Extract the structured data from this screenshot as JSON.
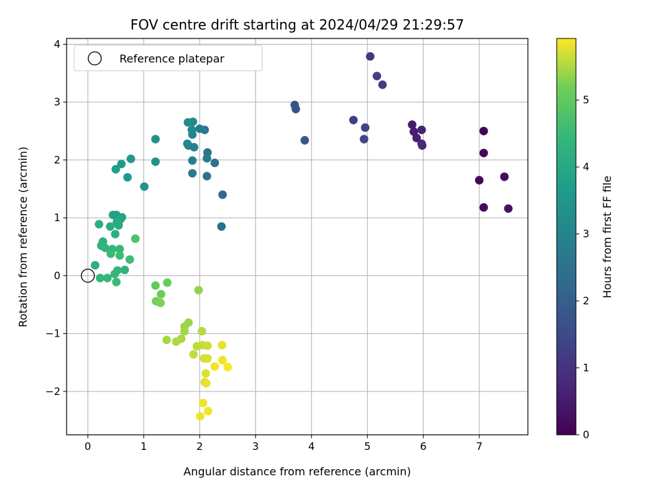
{
  "chart_data": {
    "type": "scatter",
    "title": "FOV centre drift starting at 2024/04/29 21:29:57",
    "xlabel": "Angular distance from reference (arcmin)",
    "ylabel": "Rotation from reference (arcmin)",
    "xlim": [
      -0.38,
      7.87
    ],
    "ylim": [
      -2.75,
      4.1
    ],
    "xticks": [
      0,
      1,
      2,
      3,
      4,
      5,
      6,
      7
    ],
    "yticks": [
      -2,
      -1,
      0,
      1,
      2,
      3,
      4
    ],
    "xtick_labels": [
      "0",
      "1",
      "2",
      "3",
      "4",
      "5",
      "6",
      "7"
    ],
    "ytick_labels": [
      "−2",
      "−1",
      "0",
      "1",
      "2",
      "3",
      "4"
    ],
    "grid": true,
    "legend": {
      "placement": "upper-left",
      "entries": [
        "Reference platepar"
      ]
    },
    "reference_point": {
      "x": 0,
      "y": 0
    },
    "colorbar": {
      "label": "Hours from first FF file",
      "colormap": "viridis",
      "range": [
        0,
        5.92
      ],
      "ticks": [
        0,
        1,
        2,
        3,
        4,
        5
      ],
      "tick_labels": [
        "0",
        "1",
        "2",
        "3",
        "4",
        "5"
      ]
    },
    "points": [
      {
        "x": 7.08,
        "y": 2.5,
        "h": 0.05
      },
      {
        "x": 7.08,
        "y": 2.12,
        "h": 0.1
      },
      {
        "x": 7.0,
        "y": 1.65,
        "h": 0.15
      },
      {
        "x": 7.08,
        "y": 1.18,
        "h": 0.2
      },
      {
        "x": 7.45,
        "y": 1.71,
        "h": 0.25
      },
      {
        "x": 7.52,
        "y": 1.16,
        "h": 0.3
      },
      {
        "x": 5.8,
        "y": 2.61,
        "h": 0.5
      },
      {
        "x": 5.83,
        "y": 2.49,
        "h": 0.55
      },
      {
        "x": 5.88,
        "y": 2.38,
        "h": 0.6
      },
      {
        "x": 5.97,
        "y": 2.52,
        "h": 0.65
      },
      {
        "x": 5.97,
        "y": 2.28,
        "h": 0.7
      },
      {
        "x": 5.98,
        "y": 2.25,
        "h": 0.75
      },
      {
        "x": 5.05,
        "y": 3.79,
        "h": 1.15
      },
      {
        "x": 5.17,
        "y": 3.45,
        "h": 1.2
      },
      {
        "x": 5.27,
        "y": 3.3,
        "h": 1.25
      },
      {
        "x": 4.75,
        "y": 2.69,
        "h": 1.3
      },
      {
        "x": 4.96,
        "y": 2.56,
        "h": 1.35
      },
      {
        "x": 4.94,
        "y": 2.36,
        "h": 1.4
      },
      {
        "x": 3.7,
        "y": 2.95,
        "h": 1.7
      },
      {
        "x": 3.72,
        "y": 2.88,
        "h": 1.75
      },
      {
        "x": 3.88,
        "y": 2.34,
        "h": 1.8
      },
      {
        "x": 2.41,
        "y": 1.4,
        "h": 2.3
      },
      {
        "x": 2.39,
        "y": 0.85,
        "h": 2.4
      },
      {
        "x": 2.27,
        "y": 1.95,
        "h": 2.5
      },
      {
        "x": 2.13,
        "y": 1.72,
        "h": 2.55
      },
      {
        "x": 2.14,
        "y": 2.13,
        "h": 2.6
      },
      {
        "x": 2.13,
        "y": 2.03,
        "h": 2.65
      },
      {
        "x": 2.09,
        "y": 2.52,
        "h": 2.7
      },
      {
        "x": 2.0,
        "y": 2.54,
        "h": 2.75
      },
      {
        "x": 1.87,
        "y": 1.77,
        "h": 2.8
      },
      {
        "x": 1.87,
        "y": 1.99,
        "h": 2.85
      },
      {
        "x": 1.9,
        "y": 2.22,
        "h": 2.9
      },
      {
        "x": 1.8,
        "y": 2.25,
        "h": 2.95
      },
      {
        "x": 1.78,
        "y": 2.28,
        "h": 3.0
      },
      {
        "x": 1.87,
        "y": 2.44,
        "h": 3.05
      },
      {
        "x": 1.86,
        "y": 2.52,
        "h": 3.1
      },
      {
        "x": 1.79,
        "y": 2.65,
        "h": 3.15
      },
      {
        "x": 1.88,
        "y": 2.66,
        "h": 3.2
      },
      {
        "x": 1.21,
        "y": 2.36,
        "h": 3.3
      },
      {
        "x": 1.21,
        "y": 1.97,
        "h": 3.35
      },
      {
        "x": 1.01,
        "y": 1.54,
        "h": 3.4
      },
      {
        "x": 0.77,
        "y": 2.02,
        "h": 3.55
      },
      {
        "x": 0.71,
        "y": 1.7,
        "h": 3.6
      },
      {
        "x": 0.6,
        "y": 1.93,
        "h": 3.65
      },
      {
        "x": 0.5,
        "y": 1.84,
        "h": 3.7
      },
      {
        "x": 0.45,
        "y": 1.05,
        "h": 3.8
      },
      {
        "x": 0.51,
        "y": 1.05,
        "h": 3.85
      },
      {
        "x": 0.61,
        "y": 1.01,
        "h": 3.9
      },
      {
        "x": 0.58,
        "y": 0.97,
        "h": 3.95
      },
      {
        "x": 0.52,
        "y": 0.93,
        "h": 4.0
      },
      {
        "x": 0.55,
        "y": 0.87,
        "h": 4.05
      },
      {
        "x": 0.4,
        "y": 0.85,
        "h": 4.1
      },
      {
        "x": 0.2,
        "y": 0.89,
        "h": 4.15
      },
      {
        "x": 0.49,
        "y": 0.72,
        "h": 4.2
      },
      {
        "x": 0.27,
        "y": 0.59,
        "h": 4.25
      },
      {
        "x": 0.24,
        "y": 0.52,
        "h": 4.3
      },
      {
        "x": 0.31,
        "y": 0.48,
        "h": 4.35
      },
      {
        "x": 0.44,
        "y": 0.46,
        "h": 4.4
      },
      {
        "x": 0.57,
        "y": 0.46,
        "h": 4.45
      },
      {
        "x": 0.41,
        "y": 0.38,
        "h": 4.5
      },
      {
        "x": 0.57,
        "y": 0.35,
        "h": 4.55
      },
      {
        "x": 0.75,
        "y": 0.28,
        "h": 4.6
      },
      {
        "x": 0.13,
        "y": 0.18,
        "h": 4.2
      },
      {
        "x": 0.66,
        "y": 0.1,
        "h": 4.3
      },
      {
        "x": 0.53,
        "y": 0.09,
        "h": 4.4
      },
      {
        "x": 0.48,
        "y": 0.03,
        "h": 4.45
      },
      {
        "x": 0.22,
        "y": -0.04,
        "h": 4.35
      },
      {
        "x": 0.35,
        "y": -0.04,
        "h": 4.4
      },
      {
        "x": 0.51,
        "y": -0.11,
        "h": 4.5
      },
      {
        "x": 0.85,
        "y": 0.64,
        "h": 4.75
      },
      {
        "x": 1.21,
        "y": -0.17,
        "h": 5.05
      },
      {
        "x": 1.42,
        "y": -0.12,
        "h": 5.1
      },
      {
        "x": 1.31,
        "y": -0.32,
        "h": 5.15
      },
      {
        "x": 1.22,
        "y": -0.44,
        "h": 5.2
      },
      {
        "x": 1.3,
        "y": -0.47,
        "h": 5.25
      },
      {
        "x": 1.98,
        "y": -0.25,
        "h": 5.35
      },
      {
        "x": 1.8,
        "y": -0.81,
        "h": 5.4
      },
      {
        "x": 1.73,
        "y": -0.88,
        "h": 5.42
      },
      {
        "x": 1.73,
        "y": -0.96,
        "h": 5.45
      },
      {
        "x": 1.67,
        "y": -1.09,
        "h": 5.48
      },
      {
        "x": 1.58,
        "y": -1.14,
        "h": 5.5
      },
      {
        "x": 1.41,
        "y": -1.11,
        "h": 5.47
      },
      {
        "x": 2.04,
        "y": -0.96,
        "h": 5.55
      },
      {
        "x": 1.95,
        "y": -1.22,
        "h": 5.58
      },
      {
        "x": 2.05,
        "y": -1.2,
        "h": 5.62
      },
      {
        "x": 2.14,
        "y": -1.21,
        "h": 5.65
      },
      {
        "x": 1.89,
        "y": -1.36,
        "h": 5.6
      },
      {
        "x": 2.08,
        "y": -1.43,
        "h": 5.7
      },
      {
        "x": 2.14,
        "y": -1.43,
        "h": 5.72
      },
      {
        "x": 2.11,
        "y": -1.69,
        "h": 5.75
      },
      {
        "x": 2.09,
        "y": -1.84,
        "h": 5.78
      },
      {
        "x": 2.12,
        "y": -1.86,
        "h": 5.8
      },
      {
        "x": 2.06,
        "y": -2.2,
        "h": 5.82
      },
      {
        "x": 2.01,
        "y": -2.43,
        "h": 5.84
      },
      {
        "x": 2.15,
        "y": -2.34,
        "h": 5.86
      },
      {
        "x": 2.4,
        "y": -1.2,
        "h": 5.8
      },
      {
        "x": 2.41,
        "y": -1.46,
        "h": 5.84
      },
      {
        "x": 2.27,
        "y": -1.57,
        "h": 5.86
      },
      {
        "x": 2.5,
        "y": -1.58,
        "h": 5.9
      }
    ]
  }
}
